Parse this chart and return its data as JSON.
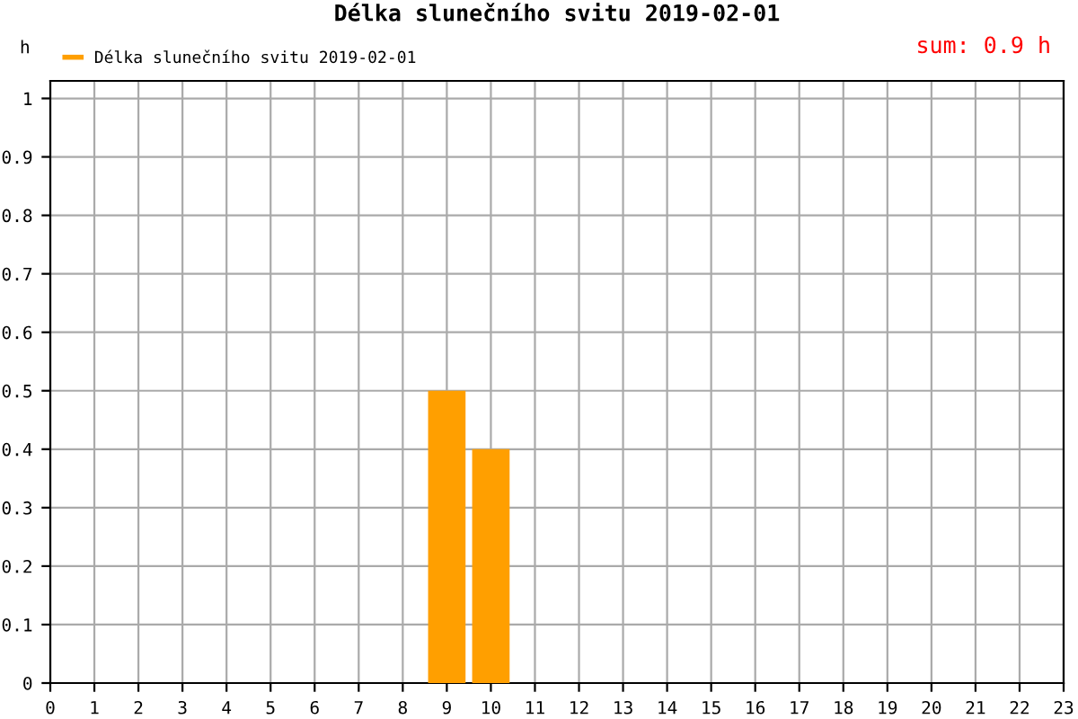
{
  "chart_data": {
    "type": "bar",
    "title": "Délka slunečního svitu 2019-02-01",
    "ylabel": "h",
    "annotations": [
      "sum: 0.9 h"
    ],
    "series": [
      {
        "name": "Délka slunečního svitu 2019-02-01",
        "color": "#ff9f00",
        "x": [
          9,
          10
        ],
        "values": [
          0.5,
          0.4
        ]
      }
    ],
    "xlim": [
      0,
      23
    ],
    "xticks": [
      0,
      1,
      2,
      3,
      4,
      5,
      6,
      7,
      8,
      9,
      10,
      11,
      12,
      13,
      14,
      15,
      16,
      17,
      18,
      19,
      20,
      21,
      22,
      23
    ],
    "ylim": [
      0,
      1.03
    ],
    "yticks": [
      0,
      0.1,
      0.2,
      0.3,
      0.4,
      0.5,
      0.6,
      0.7,
      0.8,
      0.9,
      1
    ],
    "grid": true,
    "legend": "top left"
  }
}
